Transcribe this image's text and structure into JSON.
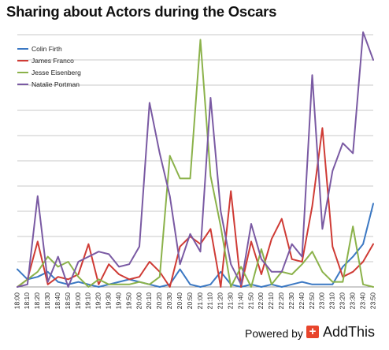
{
  "chart_data": {
    "type": "line",
    "title": "Sharing about Actors during the Oscars",
    "x": [
      "18:00",
      "18:10",
      "18:20",
      "18:30",
      "18:40",
      "18:50",
      "19:00",
      "19:10",
      "19:20",
      "19:30",
      "19:40",
      "19:50",
      "20:00",
      "20:10",
      "20:20",
      "20:30",
      "20:40",
      "20:50",
      "21:00",
      "21:10",
      "21:20",
      "21:30",
      "21:40",
      "21:50",
      "22:00",
      "22:10",
      "22:20",
      "22:30",
      "22:40",
      "22:50",
      "23:00",
      "23:10",
      "23:20",
      "23:30",
      "23:40",
      "23:50"
    ],
    "ylim": [
      0,
      10
    ],
    "grid": true,
    "legend_position": "top-left",
    "series": [
      {
        "name": "Colin Firth",
        "color": "#3b78c3",
        "values": [
          0.7,
          0.3,
          0.4,
          0.6,
          0.2,
          0.1,
          0.2,
          0.1,
          0,
          0.1,
          0.2,
          0.3,
          0.2,
          0.1,
          0,
          0.1,
          0.7,
          0.1,
          0,
          0.1,
          0.6,
          0.1,
          0,
          0.1,
          0,
          0.1,
          0,
          0.1,
          0.2,
          0.1,
          0.1,
          0.1,
          0.8,
          1.2,
          1.7,
          3.3
        ]
      },
      {
        "name": "James Franco",
        "color": "#cf3b35",
        "values": [
          0,
          0.3,
          1.8,
          0.1,
          0.4,
          0.3,
          0.5,
          1.7,
          0.1,
          0.9,
          0.5,
          0.3,
          0.4,
          1.0,
          0.6,
          0,
          1.6,
          2.0,
          1.7,
          2.3,
          0,
          3.8,
          0,
          1.8,
          0.5,
          1.9,
          2.7,
          1.1,
          1.0,
          3.2,
          6.3,
          1.6,
          0.4,
          0.6,
          1.0,
          1.7
        ]
      },
      {
        "name": "Jesse Eisenberg",
        "color": "#8bb24a",
        "values": [
          0,
          0.3,
          0.6,
          1.2,
          0.8,
          1.0,
          0.4,
          0,
          0.3,
          0.1,
          0.1,
          0.1,
          0.2,
          0.1,
          0.4,
          5.2,
          4.3,
          4.3,
          9.8,
          4.4,
          2.4,
          0,
          0.8,
          0,
          1.5,
          0.1,
          0.6,
          0.5,
          0.9,
          1.4,
          0.6,
          0.2,
          0.2,
          2.4,
          0.1,
          0
        ]
      },
      {
        "name": "Natalie Portman",
        "color": "#7a5aa3",
        "values": [
          0,
          0.1,
          3.6,
          0.2,
          1.2,
          0,
          1.0,
          1.2,
          1.4,
          1.3,
          0.8,
          0.9,
          1.6,
          7.3,
          5.3,
          3.6,
          0.9,
          2.1,
          1.4,
          7.5,
          3.0,
          0.9,
          0.1,
          2.5,
          1.1,
          0.6,
          0.6,
          1.7,
          1.2,
          8.4,
          2.3,
          4.6,
          5.7,
          5.3,
          10.1,
          9.0
        ]
      }
    ]
  },
  "footer": {
    "powered_by": "Powered by",
    "brand": "AddThis",
    "brand_icon": "+"
  }
}
